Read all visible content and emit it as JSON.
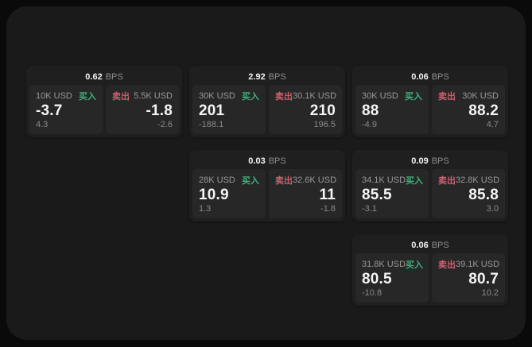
{
  "labels": {
    "bps_unit": "BPS",
    "buy": "买入",
    "sell": "卖出"
  },
  "colors": {
    "buy_green": "#3faf7c",
    "sell_red": "#d05f70",
    "window_bg": "#1a1a1a",
    "card_bg": "#1f1f1f",
    "panel_bg": "#272727"
  },
  "cards": [
    {
      "bps": "0.62",
      "buy": {
        "amount": "10K USD",
        "price": "-3.7",
        "delta": "4.3"
      },
      "sell": {
        "amount": "5.5K USD",
        "price": "-1.8",
        "delta": "-2.6"
      }
    },
    {
      "bps": "2.92",
      "buy": {
        "amount": "30K USD",
        "price": "201",
        "delta": "-188.1"
      },
      "sell": {
        "amount": "30.1K USD",
        "price": "210",
        "delta": "196.5"
      }
    },
    {
      "bps": "0.06",
      "buy": {
        "amount": "30K USD",
        "price": "88",
        "delta": "-4.9"
      },
      "sell": {
        "amount": "30K USD",
        "price": "88.2",
        "delta": "4.7"
      }
    },
    {
      "bps": "0.03",
      "buy": {
        "amount": "28K USD",
        "price": "10.9",
        "delta": "1.3"
      },
      "sell": {
        "amount": "32.6K USD",
        "price": "11",
        "delta": "-1.8"
      }
    },
    {
      "bps": "0.09",
      "buy": {
        "amount": "34.1K USD",
        "price": "85.5",
        "delta": "-3.1"
      },
      "sell": {
        "amount": "32.8K USD",
        "price": "85.8",
        "delta": "3.0"
      }
    },
    {
      "bps": "0.06",
      "buy": {
        "amount": "31.8K USD",
        "price": "80.5",
        "delta": "-10.8"
      },
      "sell": {
        "amount": "39.1K USD",
        "price": "80.7",
        "delta": "10.2"
      }
    }
  ]
}
